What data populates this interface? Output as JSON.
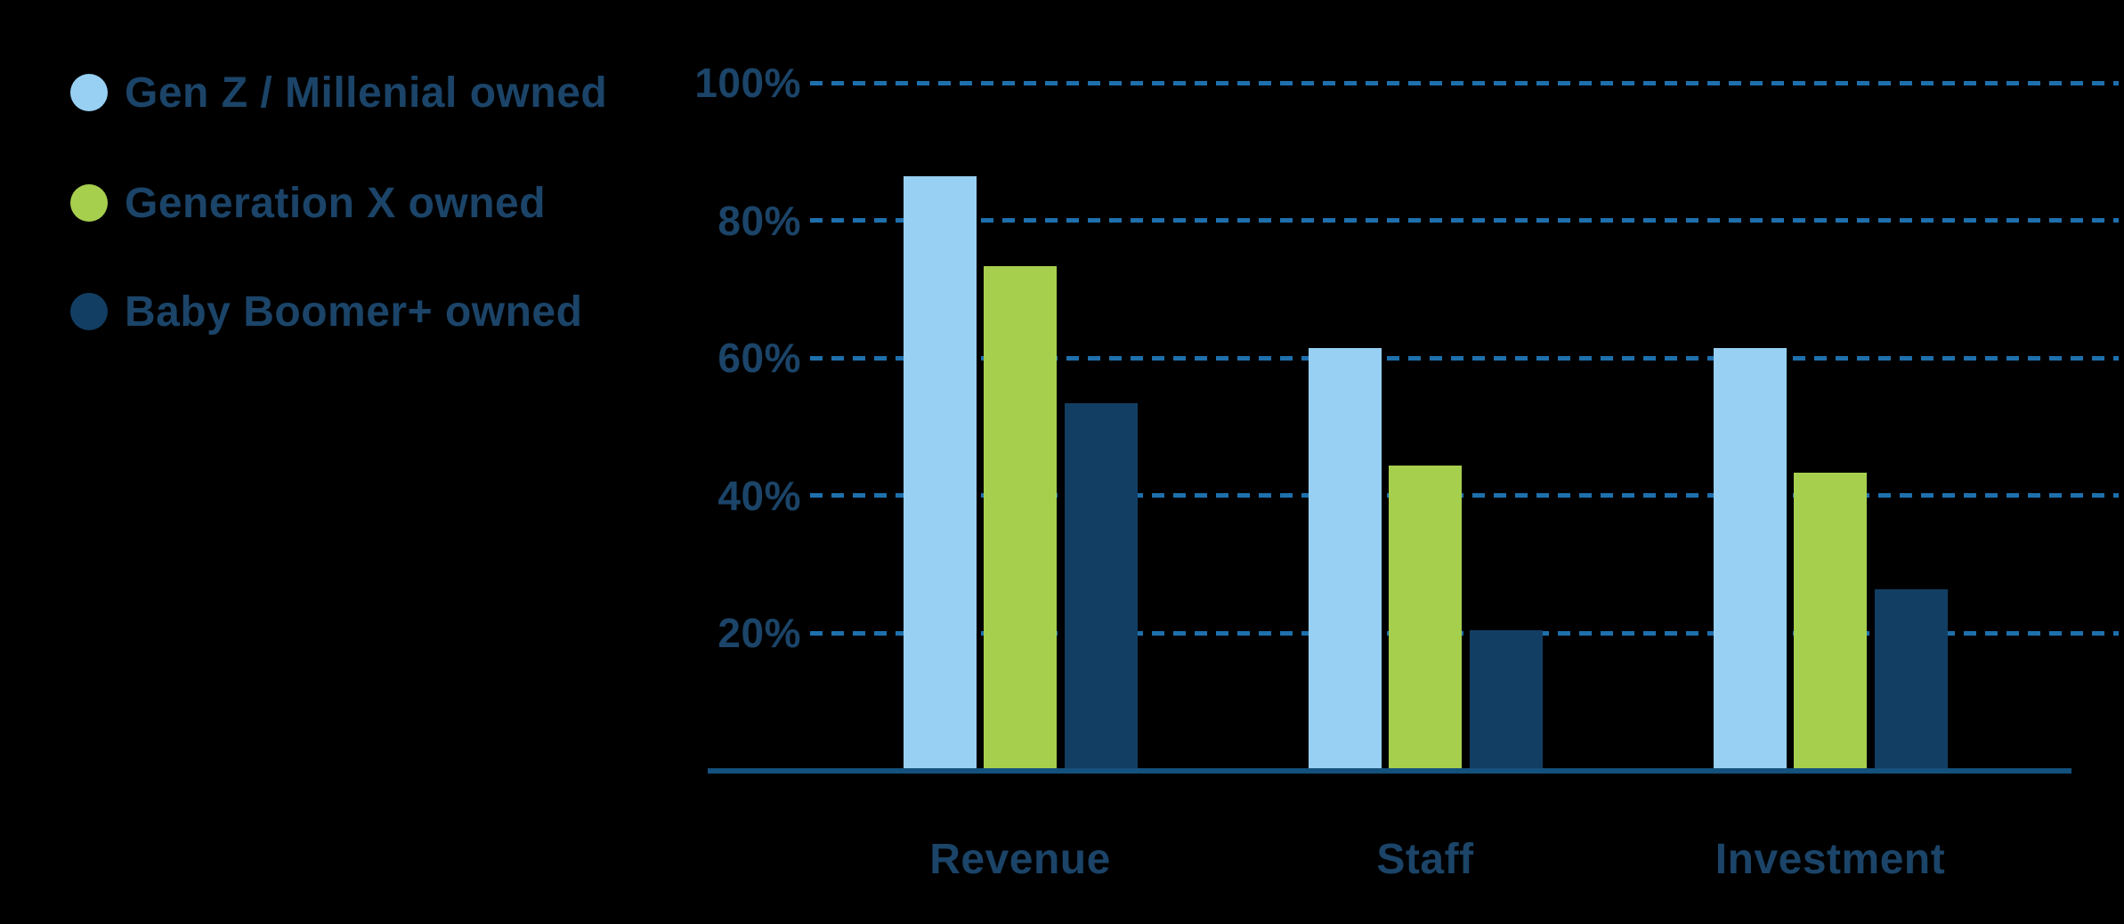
{
  "legend": {
    "items": [
      {
        "label": "Gen Z / Millenial owned",
        "color": "#97d0f2"
      },
      {
        "label": "Generation X owned",
        "color": "#a6cf4e"
      },
      {
        "label": "Baby Boomer+ owned",
        "color": "#123e63"
      }
    ]
  },
  "chart_data": {
    "type": "bar",
    "title": "",
    "xlabel": "",
    "ylabel": "",
    "categories": [
      "Revenue",
      "Staff",
      "Investment"
    ],
    "series": [
      {
        "name": "Gen Z / Millenial owned",
        "color": "#97d0f2",
        "values": [
          86,
          61,
          61
        ]
      },
      {
        "name": "Generation X owned",
        "color": "#a6cf4e",
        "values": [
          73,
          44,
          43
        ]
      },
      {
        "name": "Baby Boomer+ owned",
        "color": "#123e63",
        "values": [
          53,
          20,
          26
        ]
      }
    ],
    "ylim": [
      0,
      100
    ],
    "yticks": [
      100,
      80,
      60,
      40,
      20
    ],
    "ytick_labels": [
      "100%",
      "80%",
      "60%",
      "40%",
      "20%"
    ],
    "grid": "horizontal-dashed",
    "legend_position": "left"
  },
  "colors": {
    "background": "#000000",
    "text": "#1b4468",
    "gridline_dash": "#1e70ad",
    "axis_line": "#14517d"
  }
}
